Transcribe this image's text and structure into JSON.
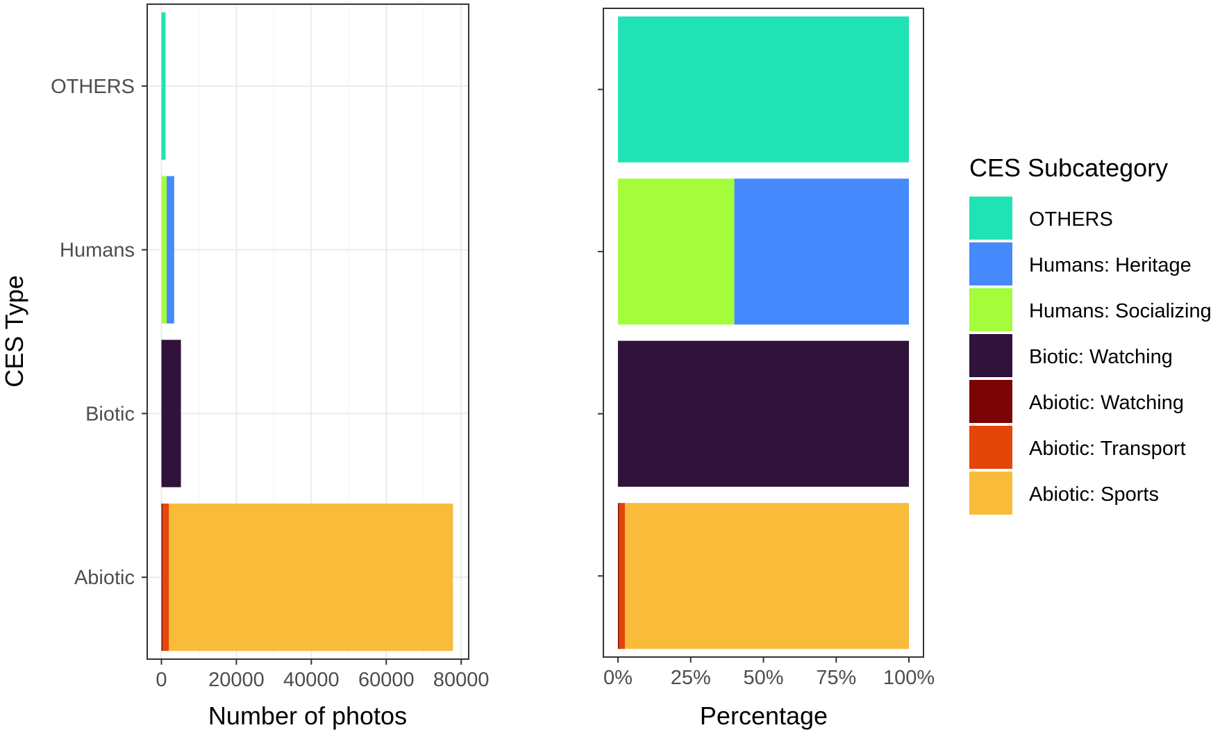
{
  "chart_data": [
    {
      "type": "bar",
      "orientation": "horizontal",
      "stacked": true,
      "categories": [
        "Abiotic",
        "Biotic",
        "Humans",
        "OTHERS"
      ],
      "ylabel": "CES Type",
      "xlabel": "Number of photos",
      "xlim": [
        -3800,
        82000
      ],
      "xticks": [
        0,
        20000,
        40000,
        60000,
        80000
      ],
      "xtick_labels": [
        "0",
        "20000",
        "40000",
        "60000",
        "80000"
      ],
      "grid": true,
      "series": [
        {
          "name": "Abiotic: Sports",
          "values": [
            75800,
            0,
            0,
            0
          ]
        },
        {
          "name": "Abiotic: Transport",
          "values": [
            1700,
            0,
            0,
            0
          ]
        },
        {
          "name": "Abiotic: Watching",
          "values": [
            300,
            0,
            0,
            0
          ]
        },
        {
          "name": "Biotic: Watching",
          "values": [
            0,
            5200,
            0,
            0
          ]
        },
        {
          "name": "Humans: Socializing",
          "values": [
            0,
            0,
            1400,
            0
          ]
        },
        {
          "name": "Humans: Heritage",
          "values": [
            0,
            0,
            2000,
            0
          ]
        },
        {
          "name": "OTHERS",
          "values": [
            0,
            0,
            0,
            1100
          ]
        }
      ]
    },
    {
      "type": "bar",
      "orientation": "horizontal",
      "stacked": true,
      "normalized": true,
      "categories": [
        "Abiotic",
        "Biotic",
        "Humans",
        "OTHERS"
      ],
      "xlabel": "Percentage",
      "xlim": [
        -0.05,
        1.05
      ],
      "xticks": [
        0,
        0.25,
        0.5,
        0.75,
        1
      ],
      "xtick_labels": [
        "0%",
        "25%",
        "50%",
        "75%",
        "100%"
      ],
      "grid": false,
      "series": [
        {
          "name": "Abiotic: Sports",
          "values": [
            0.976,
            0,
            0,
            0
          ]
        },
        {
          "name": "Abiotic: Transport",
          "values": [
            0.02,
            0,
            0,
            0
          ]
        },
        {
          "name": "Abiotic: Watching",
          "values": [
            0.004,
            0,
            0,
            0
          ]
        },
        {
          "name": "Biotic: Watching",
          "values": [
            0,
            1,
            0,
            0
          ]
        },
        {
          "name": "Humans: Socializing",
          "values": [
            0,
            0,
            0.4,
            0
          ]
        },
        {
          "name": "Humans: Heritage",
          "values": [
            0,
            0,
            0.6,
            0
          ]
        },
        {
          "name": "OTHERS",
          "values": [
            0,
            0,
            0,
            1
          ]
        }
      ]
    }
  ],
  "legend": {
    "title": "CES Subcategory",
    "placement": "right",
    "items": [
      {
        "label": "OTHERS",
        "color": "#1FE3B4"
      },
      {
        "label": "Humans: Heritage",
        "color": "#4689FC"
      },
      {
        "label": "Humans: Socializing",
        "color": "#A4FC3B"
      },
      {
        "label": "Biotic: Watching",
        "color": "#30123B"
      },
      {
        "label": "Abiotic: Watching",
        "color": "#7A0403"
      },
      {
        "label": "Abiotic: Transport",
        "color": "#E4460A"
      },
      {
        "label": "Abiotic: Sports",
        "color": "#F8BB3A"
      }
    ]
  },
  "colors": {
    "panel_border": "#333333",
    "grid_major": "#EBEBEB",
    "grid_minor": "#F4F4F4",
    "tick_text": "#4D4D4D",
    "axis_text": "#000000"
  }
}
